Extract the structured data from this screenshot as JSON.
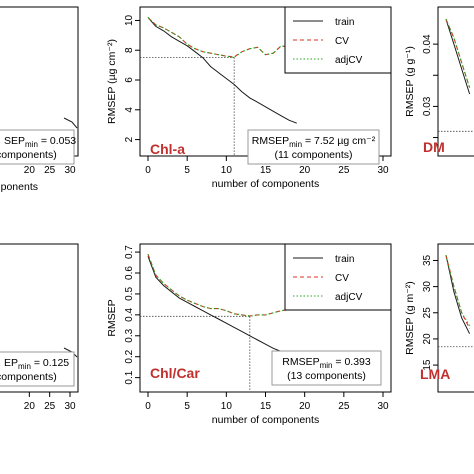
{
  "chart_data": [
    {
      "id": "tl",
      "type": "line",
      "partial": true,
      "xlim": [
        0,
        30
      ],
      "xticks": [
        20,
        25,
        30
      ],
      "xtick_labels": [
        "20",
        "25",
        "30"
      ],
      "xlabel": "omponents",
      "ylabel": "",
      "tag": "",
      "annotation_lines": [
        "SEPmin = 0.053",
        "components)"
      ],
      "annotation_parts": [
        {
          "text": "SEP",
          "sub": "min",
          "rest": " = 0.053"
        }
      ],
      "series": [
        {
          "name": "train",
          "x": [
            18,
            19
          ],
          "y": [
            0.62,
            0.55
          ]
        }
      ]
    },
    {
      "id": "tc",
      "type": "line",
      "xlim": [
        0,
        30
      ],
      "ylim": [
        1.3,
        10.5
      ],
      "xticks": [
        0,
        5,
        10,
        15,
        20,
        25,
        30
      ],
      "yticks": [
        2,
        4,
        6,
        8,
        10
      ],
      "xlabel": "number of components",
      "ylabel": "RMSEP (µg cm⁻²)",
      "tag": "Chl-a",
      "annotation_main": "RMSEP",
      "annotation_sub": "min",
      "annotation_rest": " = 7.52 µg cm⁻²",
      "annotation_line2": "(11 components)",
      "ref_x": 11,
      "ref_y": 7.52,
      "legend": [
        "train",
        "CV",
        "adjCV"
      ],
      "series": [
        {
          "name": "train",
          "x": [
            0,
            1,
            2,
            3,
            4,
            5,
            6,
            7,
            8,
            9,
            10,
            11,
            12,
            13,
            14,
            15,
            16,
            17,
            18,
            19
          ],
          "y": [
            10.2,
            9.6,
            9.3,
            8.9,
            8.6,
            8.3,
            7.9,
            7.5,
            6.9,
            6.5,
            6.1,
            5.7,
            5.2,
            4.8,
            4.5,
            4.2,
            3.9,
            3.6,
            3.3,
            3.1
          ]
        },
        {
          "name": "CV",
          "x": [
            0,
            1,
            2,
            3,
            4,
            5,
            6,
            7,
            8,
            9,
            10,
            11,
            12,
            13,
            14,
            15,
            16,
            17,
            18,
            19
          ],
          "y": [
            10.2,
            9.7,
            9.5,
            9.2,
            8.9,
            8.4,
            8.1,
            7.9,
            7.8,
            7.7,
            7.6,
            7.55,
            7.9,
            8.1,
            8.2,
            7.7,
            7.8,
            8.3,
            8.2,
            8.3
          ]
        },
        {
          "name": "adjCV",
          "x": [
            0,
            1,
            2,
            3,
            4,
            5,
            6,
            7,
            8,
            9,
            10,
            11,
            12,
            13,
            14,
            15,
            16,
            17,
            18,
            19
          ],
          "y": [
            10.2,
            9.7,
            9.5,
            9.2,
            8.9,
            8.4,
            8.1,
            7.9,
            7.8,
            7.7,
            7.6,
            7.52,
            7.9,
            8.1,
            8.2,
            7.7,
            7.8,
            8.3,
            8.2,
            8.3
          ]
        }
      ]
    },
    {
      "id": "tr",
      "type": "line",
      "partial": true,
      "xlim": [
        0,
        30
      ],
      "ylim": [
        0.023,
        0.045
      ],
      "yticks": [
        0.025,
        0.03,
        0.035,
        0.04
      ],
      "ytick_labels": [
        "",
        "0.03",
        "",
        "0.04"
      ],
      "xlabel": "",
      "ylabel": "RMSEP (g g⁻¹)",
      "tag": "DM",
      "ref_y": 0.026,
      "series": [
        {
          "name": "train",
          "x": [
            0,
            1,
            2,
            3
          ],
          "y": [
            0.044,
            0.04,
            0.036,
            0.032
          ]
        },
        {
          "name": "CV",
          "x": [
            0,
            1,
            2,
            3
          ],
          "y": [
            0.044,
            0.041,
            0.037,
            0.033
          ]
        },
        {
          "name": "adjCV",
          "x": [
            0,
            1,
            2,
            3
          ],
          "y": [
            0.044,
            0.041,
            0.037,
            0.033
          ]
        }
      ]
    },
    {
      "id": "bl",
      "type": "line",
      "partial": true,
      "xlim": [
        0,
        30
      ],
      "xticks": [
        20,
        25,
        30
      ],
      "xtick_labels": [
        "20",
        "25",
        "30"
      ],
      "xlabel": "",
      "ylabel": "",
      "tag": "",
      "annotation_main": "EP",
      "annotation_sub": "min",
      "annotation_rest": " = 0.125",
      "annotation_line2": "components)",
      "series": [
        {
          "name": "train",
          "x": [
            18,
            19
          ],
          "y": [
            0.3,
            0.27
          ]
        }
      ]
    },
    {
      "id": "bc",
      "type": "line",
      "xlim": [
        0,
        30
      ],
      "ylim": [
        0.06,
        0.71
      ],
      "xticks": [
        0,
        5,
        10,
        15,
        20,
        25,
        30
      ],
      "yticks": [
        0.1,
        0.2,
        0.3,
        0.4,
        0.5,
        0.6,
        0.7
      ],
      "xlabel": "number of components",
      "ylabel": "RMSEP",
      "tag": "Chl/Car",
      "annotation_main": "RMSEP",
      "annotation_sub": "min",
      "annotation_rest": " = 0.393",
      "annotation_line2": "(13 components)",
      "ref_x": 13,
      "ref_y": 0.393,
      "legend": [
        "train",
        "CV",
        "adjCV"
      ],
      "series": [
        {
          "name": "train",
          "x": [
            0,
            1,
            2,
            3,
            4,
            5,
            6,
            7,
            8,
            9,
            10,
            11,
            12,
            13,
            14,
            15,
            16,
            17,
            18,
            19
          ],
          "y": [
            0.68,
            0.58,
            0.54,
            0.51,
            0.48,
            0.46,
            0.44,
            0.42,
            0.4,
            0.38,
            0.36,
            0.34,
            0.32,
            0.3,
            0.28,
            0.26,
            0.24,
            0.225,
            0.21,
            0.195
          ]
        },
        {
          "name": "CV",
          "x": [
            0,
            1,
            2,
            3,
            4,
            5,
            6,
            7,
            8,
            9,
            10,
            11,
            12,
            13,
            14,
            15,
            16,
            17,
            18,
            19
          ],
          "y": [
            0.69,
            0.59,
            0.55,
            0.52,
            0.49,
            0.47,
            0.455,
            0.44,
            0.43,
            0.43,
            0.42,
            0.405,
            0.4,
            0.395,
            0.4,
            0.4,
            0.41,
            0.42,
            0.425,
            0.43
          ]
        },
        {
          "name": "adjCV",
          "x": [
            0,
            1,
            2,
            3,
            4,
            5,
            6,
            7,
            8,
            9,
            10,
            11,
            12,
            13,
            14,
            15,
            16,
            17,
            18,
            19
          ],
          "y": [
            0.69,
            0.59,
            0.55,
            0.52,
            0.49,
            0.47,
            0.455,
            0.44,
            0.43,
            0.43,
            0.42,
            0.405,
            0.4,
            0.393,
            0.4,
            0.4,
            0.41,
            0.42,
            0.425,
            0.43
          ]
        }
      ]
    },
    {
      "id": "br",
      "type": "line",
      "partial": true,
      "xlim": [
        0,
        30
      ],
      "ylim": [
        11,
        37
      ],
      "yticks": [
        15,
        20,
        25,
        30,
        35
      ],
      "xlabel": "",
      "ylabel": "RMSEP (g m⁻²)",
      "tag": "LMA",
      "ref_y": 18.5,
      "series": [
        {
          "name": "train",
          "x": [
            0,
            1,
            2,
            3
          ],
          "y": [
            36,
            29,
            24,
            21
          ]
        },
        {
          "name": "CV",
          "x": [
            0,
            1,
            2,
            3
          ],
          "y": [
            36,
            30,
            25,
            22
          ]
        },
        {
          "name": "adjCV",
          "x": [
            0,
            1,
            2,
            3
          ],
          "y": [
            36,
            30,
            25,
            22.5
          ]
        }
      ]
    }
  ],
  "colors": {
    "train": "#1a1a1a",
    "CV": "#e0301e",
    "adjCV": "#22a81e",
    "tag": "#c0302e",
    "ref": "#444444"
  }
}
